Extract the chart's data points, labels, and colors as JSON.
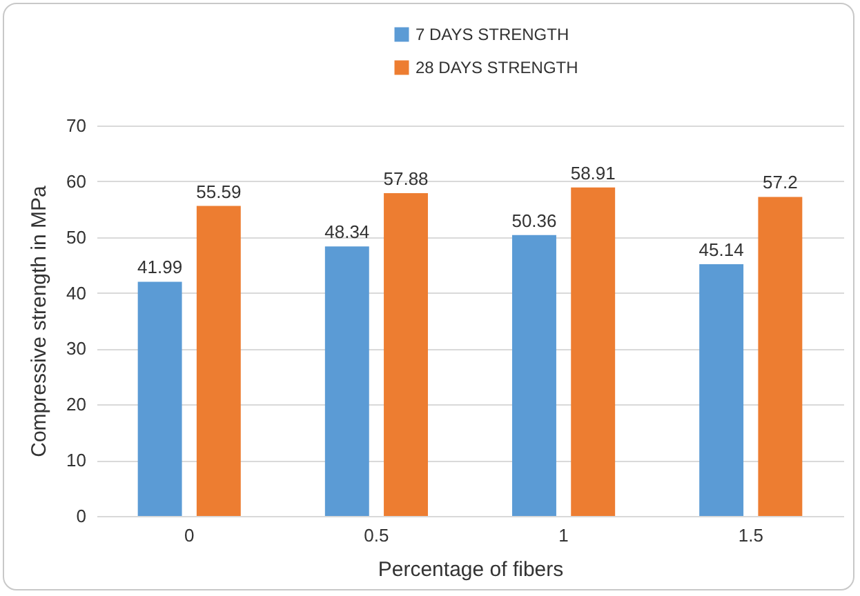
{
  "chart_data": {
    "type": "bar",
    "xlabel": "Percentage of fibers",
    "ylabel": "Compressive strength in MPa",
    "categories": [
      "0",
      "0.5",
      "1",
      "1.5"
    ],
    "series": [
      {
        "name": "7 DAYS STRENGTH",
        "color": "#5b9bd5",
        "values": [
          41.99,
          48.34,
          50.36,
          45.14
        ]
      },
      {
        "name": "28 DAYS STRENGTH",
        "color": "#ed7d31",
        "values": [
          55.59,
          57.88,
          58.91,
          57.2
        ]
      }
    ],
    "ylim": [
      0,
      70
    ],
    "yticks": [
      0,
      10,
      20,
      30,
      40,
      50,
      60,
      70
    ],
    "grid": "y",
    "legend": "top",
    "data_labels": true
  }
}
